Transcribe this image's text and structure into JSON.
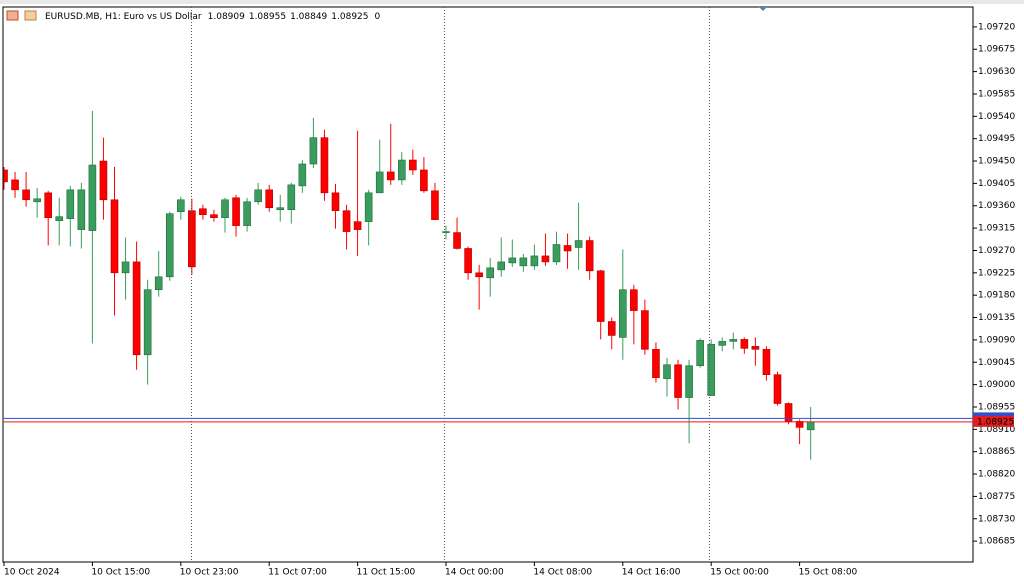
{
  "chart_data": {
    "type": "candlestick",
    "title": "EURUSD.MB, H1:  Euro vs US Dollar",
    "header_value": 0,
    "categories": [
      "10 Oct 2024",
      null,
      null,
      null,
      null,
      null,
      null,
      null,
      "10 Oct 15:00",
      null,
      null,
      null,
      null,
      null,
      null,
      null,
      "10 Oct 23:00",
      null,
      null,
      null,
      null,
      null,
      null,
      null,
      "11 Oct 07:00",
      null,
      null,
      null,
      null,
      null,
      null,
      null,
      "11 Oct 15:00",
      null,
      null,
      null,
      null,
      null,
      null,
      null,
      "14 Oct 00:00",
      null,
      null,
      null,
      null,
      null,
      null,
      null,
      "14 Oct 08:00",
      null,
      null,
      null,
      null,
      null,
      null,
      null,
      "14 Oct 16:00",
      null,
      null,
      null,
      null,
      null,
      null,
      null,
      "15 Oct 00:00",
      null,
      null,
      null,
      null,
      null,
      null,
      null,
      "15 Oct 08:00",
      null
    ],
    "open": [
      1.09432,
      1.09412,
      1.09392,
      1.09368,
      1.09386,
      1.0933,
      1.09334,
      1.09312,
      1.0931,
      1.0945,
      1.09372,
      1.09225,
      1.09247,
      1.0906,
      1.09191,
      1.09217,
      1.09348,
      1.0935,
      1.09354,
      1.09342,
      1.09336,
      1.09376,
      1.0932,
      1.09368,
      1.09392,
      1.09352,
      1.09352,
      1.094,
      1.09444,
      1.09497,
      1.09386,
      1.0935,
      1.09328,
      1.09328,
      1.09386,
      1.09428,
      1.09412,
      1.09452,
      1.09432,
      1.0939,
      1.09306,
      1.09306,
      1.09274,
      1.09225,
      1.09215,
      1.09231,
      1.09245,
      1.09239,
      1.09239,
      1.09259,
      1.09247,
      1.0928,
      1.09276,
      1.0929,
      1.09229,
      1.09127,
      1.09095,
      1.09191,
      1.09149,
      1.09071,
      1.09012,
      1.0904,
      1.08974,
      1.09038,
      1.08978,
      1.09079,
      1.09087,
      1.09091,
      1.09077,
      1.09071,
      1.0902,
      1.08962,
      1.08926,
      1.08909
    ],
    "high": [
      1.09438,
      1.09428,
      1.09428,
      1.09396,
      1.0939,
      1.09376,
      1.094,
      1.09406,
      1.09551,
      1.09497,
      1.09438,
      1.09296,
      1.09288,
      1.09211,
      1.09269,
      1.09348,
      1.09378,
      1.09374,
      1.09362,
      1.09352,
      1.09376,
      1.09382,
      1.09376,
      1.09406,
      1.09402,
      1.09382,
      1.09406,
      1.09452,
      1.09537,
      1.09513,
      1.09404,
      1.09362,
      1.09511,
      1.09392,
      1.09493,
      1.09525,
      1.09468,
      1.09473,
      1.09458,
      1.09406,
      1.0932,
      1.09336,
      1.09278,
      1.09241,
      1.09255,
      1.09296,
      1.09292,
      1.09263,
      1.09282,
      1.09304,
      1.09308,
      1.09304,
      1.09366,
      1.09298,
      1.09231,
      1.09135,
      1.09272,
      1.09201,
      1.09171,
      1.09085,
      1.09054,
      1.0905,
      1.0905,
      1.09093,
      1.09091,
      1.09095,
      1.09105,
      1.09095,
      1.09095,
      1.09077,
      1.09026,
      1.08964,
      1.0893,
      1.08955
    ],
    "low": [
      1.09392,
      1.09376,
      1.09358,
      1.09336,
      1.0928,
      1.0928,
      1.09278,
      1.09274,
      1.09083,
      1.09332,
      1.09139,
      1.09171,
      1.0903,
      1.09,
      1.09177,
      1.09209,
      1.09332,
      1.09221,
      1.09332,
      1.09328,
      1.09306,
      1.09298,
      1.09308,
      1.09362,
      1.09348,
      1.09328,
      1.09324,
      1.09386,
      1.09436,
      1.0937,
      1.09314,
      1.09272,
      1.09259,
      1.0928,
      1.09386,
      1.09402,
      1.09402,
      1.09422,
      1.09386,
      1.09332,
      1.09292,
      1.09272,
      1.09211,
      1.09151,
      1.09177,
      1.09217,
      1.09237,
      1.09227,
      1.09231,
      1.09239,
      1.09241,
      1.09233,
      1.09231,
      1.09211,
      1.09091,
      1.09071,
      1.0905,
      1.09081,
      1.0906,
      1.09004,
      1.08976,
      1.0895,
      1.08882,
      1.09034,
      1.08978,
      1.09067,
      1.09071,
      1.09062,
      1.09038,
      1.09008,
      1.08958,
      1.0892,
      1.0888,
      1.08849
    ],
    "close": [
      1.09408,
      1.09392,
      1.09372,
      1.09374,
      1.09336,
      1.09338,
      1.09392,
      1.09392,
      1.09442,
      1.09372,
      1.09225,
      1.09247,
      1.0906,
      1.09191,
      1.09217,
      1.09344,
      1.09372,
      1.09237,
      1.09342,
      1.09336,
      1.09372,
      1.0932,
      1.09368,
      1.09392,
      1.09356,
      1.09356,
      1.09402,
      1.09444,
      1.09497,
      1.09386,
      1.0935,
      1.09308,
      1.09312,
      1.09386,
      1.09428,
      1.09412,
      1.09452,
      1.09432,
      1.0939,
      1.09332,
      1.09308,
      1.09274,
      1.09225,
      1.09217,
      1.09235,
      1.09247,
      1.09255,
      1.09255,
      1.09259,
      1.09247,
      1.09282,
      1.09269,
      1.0929,
      1.09229,
      1.09127,
      1.09099,
      1.09191,
      1.09149,
      1.09071,
      1.09014,
      1.0904,
      1.08974,
      1.09038,
      1.09089,
      1.09081,
      1.09087,
      1.09091,
      1.09073,
      1.09071,
      1.0902,
      1.08962,
      1.08926,
      1.08914,
      1.08925
    ],
    "up_color": "#3a9d5d",
    "down_color": "#ff0000",
    "bid": 1.08925,
    "ask": 1.08932,
    "bid_color": "#e11d1d",
    "ask_color": "#3050d0",
    "ylim": [
      1.08643,
      1.0976
    ],
    "yticks": [
      {
        "value": 1.0972,
        "label": "1.09720"
      },
      1.09675,
      {
        "value": 1.0963,
        "label": "1.09630"
      },
      1.09585,
      {
        "value": 1.0954,
        "label": "1.09540"
      },
      1.09495,
      {
        "value": 1.0945,
        "label": "1.09450"
      },
      1.09405,
      {
        "value": 1.0936,
        "label": "1.09360"
      },
      1.09315,
      {
        "value": 1.0927,
        "label": "1.09270"
      },
      1.09225,
      {
        "value": 1.0918,
        "label": "1.09180"
      },
      1.09135,
      {
        "value": 1.0909,
        "label": "1.09090"
      },
      1.09045,
      {
        "value": 1.09,
        "label": "1.09000"
      },
      1.08955,
      {
        "value": 1.0891,
        "label": "1.08910"
      },
      1.08865,
      {
        "value": 1.0882,
        "label": "1.08820"
      },
      1.08775,
      {
        "value": 1.0873,
        "label": "1.08730"
      },
      1.08685
    ]
  }
}
